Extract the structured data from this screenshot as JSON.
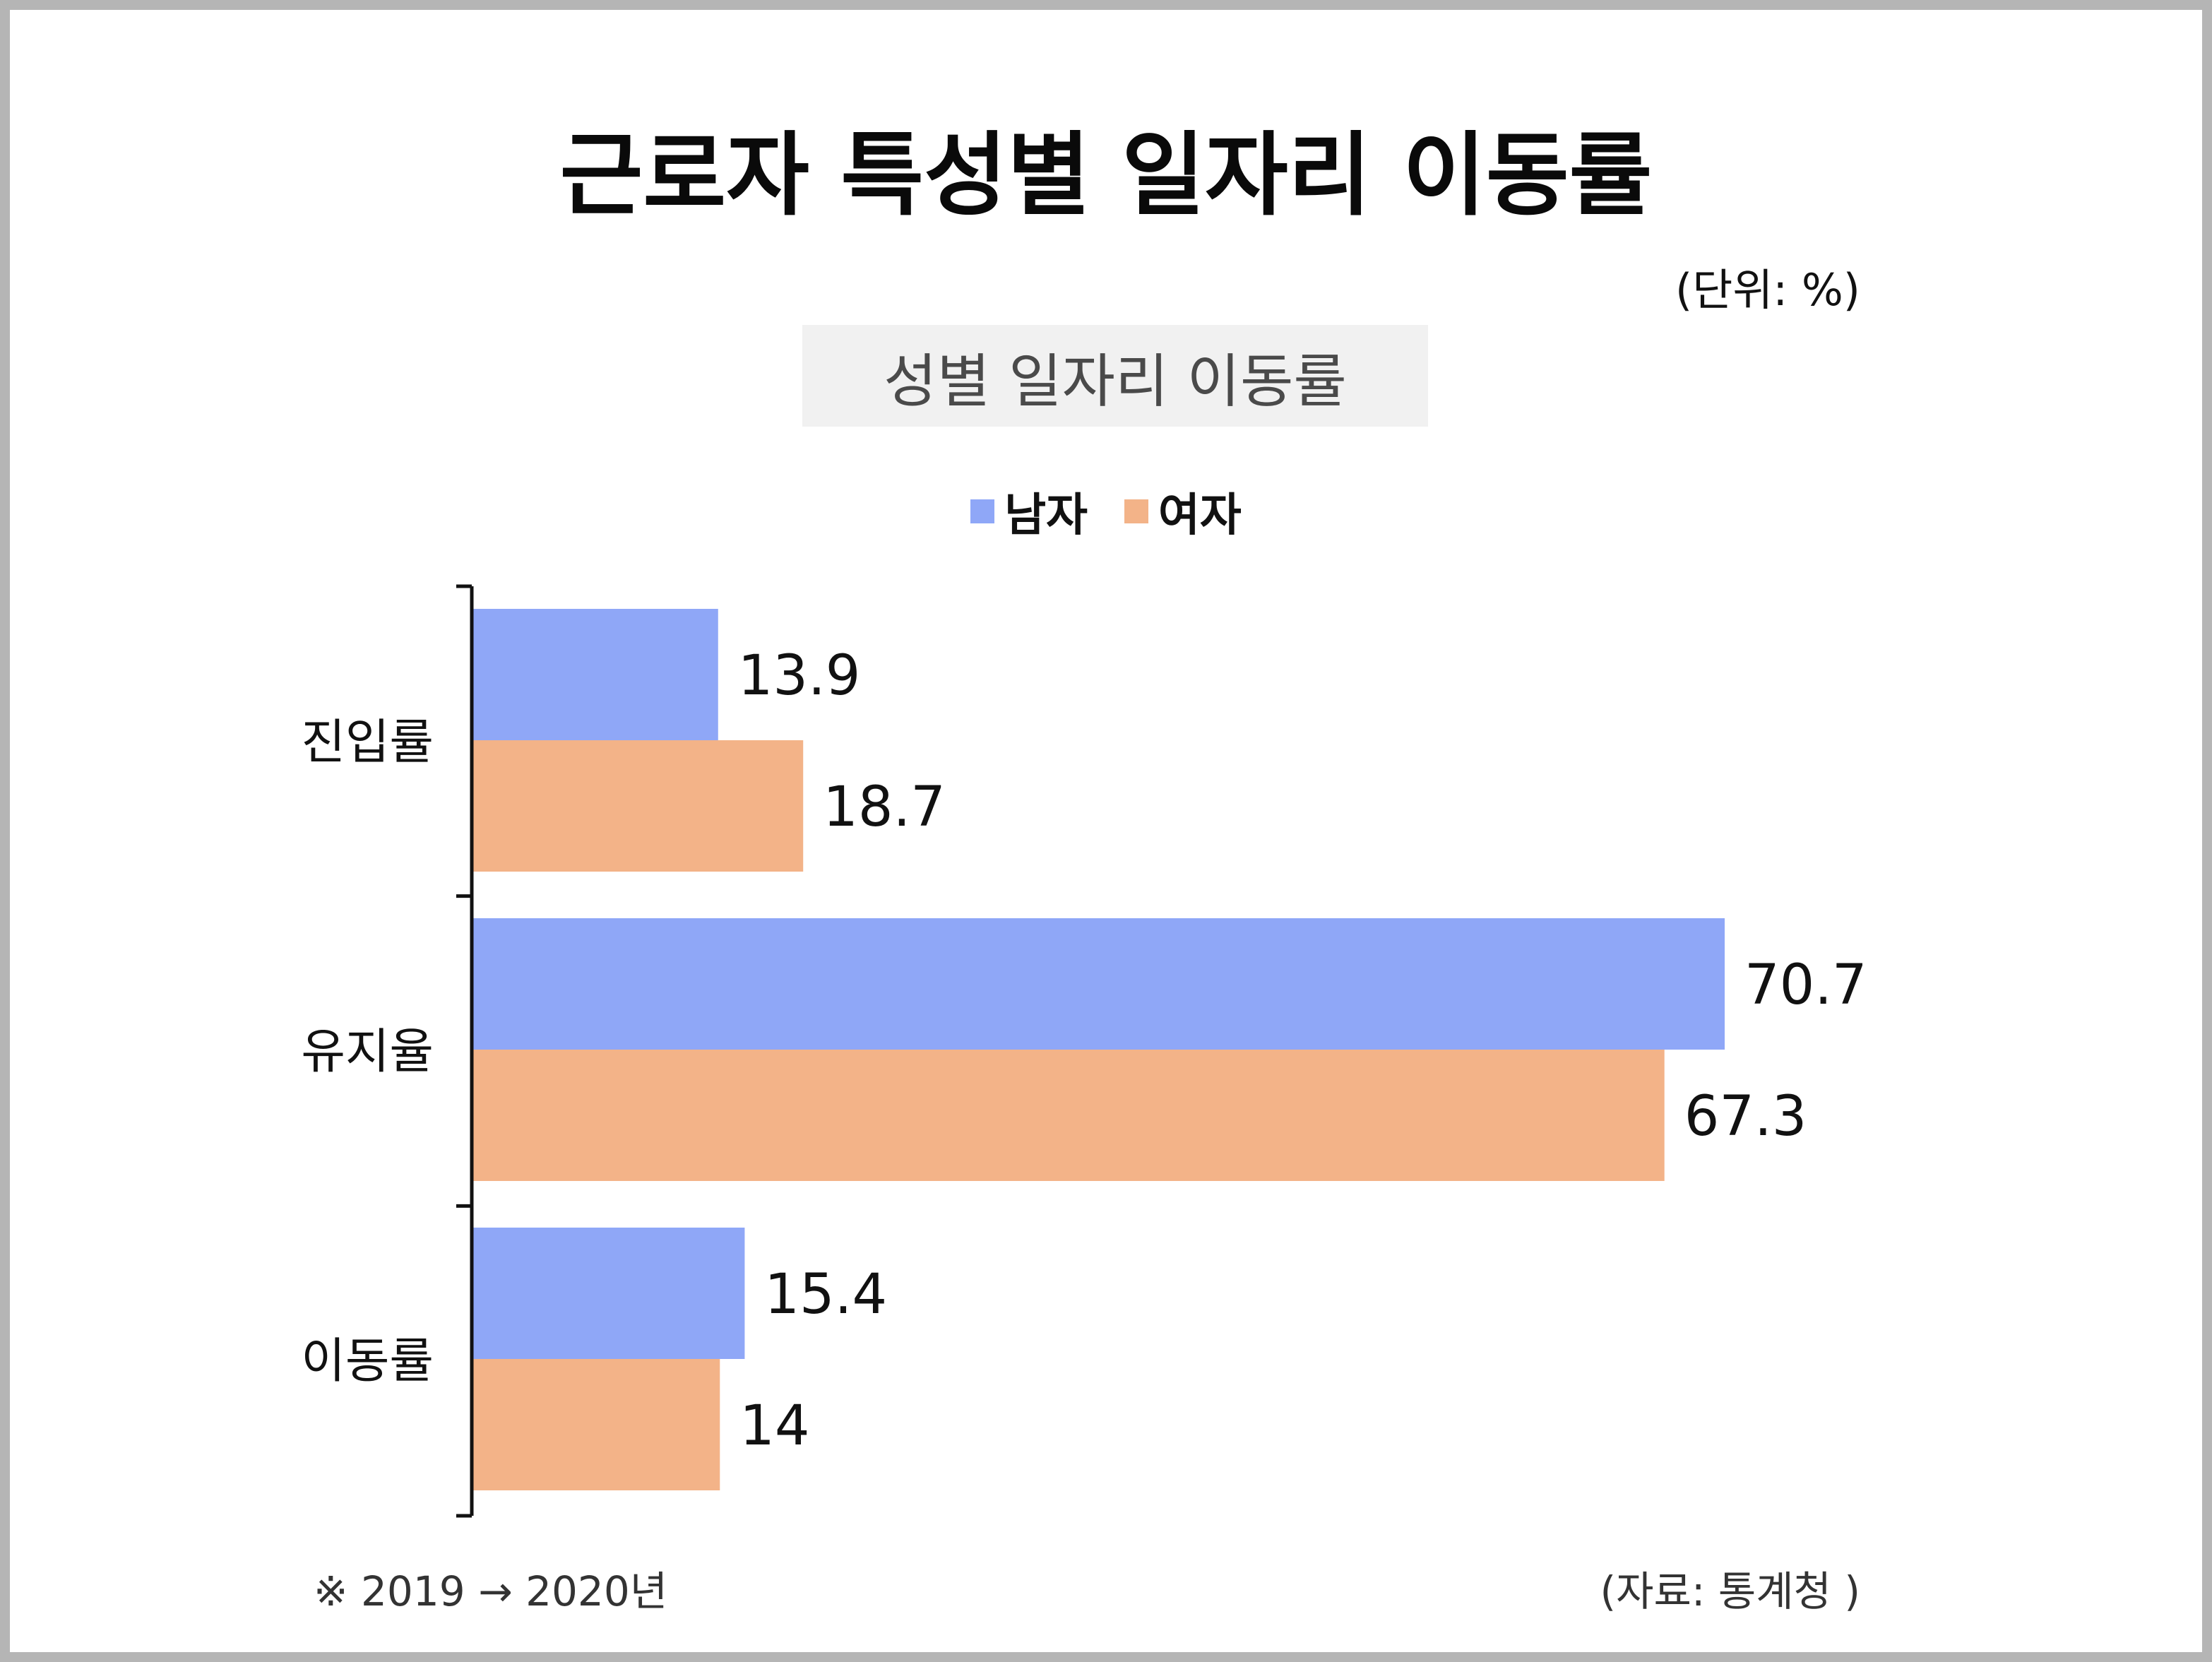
{
  "title": "근로자 특성별 일자리 이동률",
  "unit": "(단위: %)",
  "subtitle": "성별 일자리 이동률",
  "note": "※ 2019 → 2020년",
  "source": "(자료: 통계청 )",
  "colors": {
    "male": "#8fa7f7",
    "female": "#f3b388"
  },
  "chart_data": {
    "type": "bar",
    "orientation": "horizontal",
    "categories": [
      "진입률",
      "유지율",
      "이동률"
    ],
    "series": [
      {
        "name": "남자",
        "values": [
          13.9,
          70.7,
          15.4
        ]
      },
      {
        "name": "여자",
        "values": [
          18.7,
          67.3,
          14
        ]
      }
    ],
    "xlim": [
      0,
      70.7
    ],
    "grid": false,
    "legend": "top"
  }
}
